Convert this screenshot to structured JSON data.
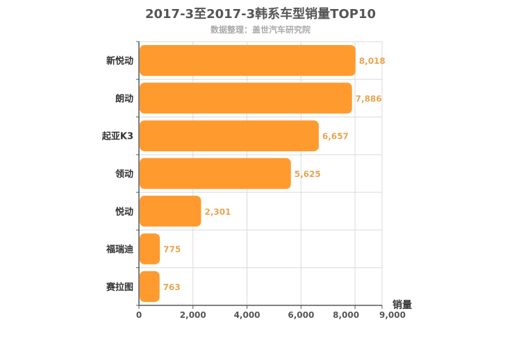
{
  "chart_data": {
    "type": "bar",
    "orientation": "horizontal",
    "title": "2017-3至2017-3韩系车型销量TOP10",
    "subtitle": "数据整理：盖世汽车研究院",
    "categories": [
      "新悦动",
      "朗动",
      "起亚K3",
      "领动",
      "悦动",
      "福瑞迪",
      "赛拉图"
    ],
    "values": [
      8018,
      7886,
      6657,
      5625,
      2301,
      775,
      763
    ],
    "value_labels": [
      "8,018",
      "7,886",
      "6,657",
      "5,625",
      "2,301",
      "775",
      "763"
    ],
    "xlabel": "销量",
    "xlim": [
      0,
      9000
    ],
    "xticks": [
      0,
      2000,
      4000,
      6000,
      8000,
      9000
    ],
    "xtick_labels": [
      "0",
      "2,000",
      "4,000",
      "6,000",
      "8,000",
      "9,000"
    ],
    "grid": true,
    "bar_color": "#ff9a2e",
    "value_label_color": "#e8a552"
  }
}
